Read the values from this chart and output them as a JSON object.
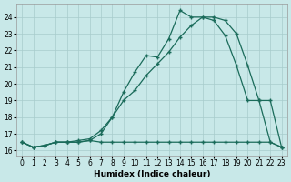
{
  "xlabel": "Humidex (Indice chaleur)",
  "bg_color": "#c8e8e8",
  "grid_color": "#a8cccc",
  "line_color": "#1a6b5a",
  "xlim": [
    -0.5,
    23.5
  ],
  "ylim": [
    15.7,
    24.8
  ],
  "yticks": [
    16,
    17,
    18,
    19,
    20,
    21,
    22,
    23,
    24
  ],
  "xticks": [
    0,
    1,
    2,
    3,
    4,
    5,
    6,
    7,
    8,
    9,
    10,
    11,
    12,
    13,
    14,
    15,
    16,
    17,
    18,
    19,
    20,
    21,
    22,
    23
  ],
  "line1_x": [
    0,
    1,
    2,
    3,
    4,
    5,
    6,
    7,
    8,
    9,
    10,
    11,
    12,
    13,
    14,
    15,
    16,
    17,
    18,
    19,
    20,
    21,
    22,
    23
  ],
  "line1_y": [
    16.5,
    16.2,
    16.3,
    16.5,
    16.5,
    16.5,
    16.6,
    16.5,
    16.5,
    16.5,
    16.5,
    16.5,
    16.5,
    16.5,
    16.5,
    16.5,
    16.5,
    16.5,
    16.5,
    16.5,
    16.5,
    16.5,
    16.5,
    16.2
  ],
  "line2_x": [
    0,
    1,
    2,
    3,
    4,
    5,
    6,
    7,
    8,
    9,
    10,
    11,
    12,
    13,
    14,
    15,
    16,
    17,
    18,
    19,
    20,
    21,
    22,
    23
  ],
  "line2_y": [
    16.5,
    16.2,
    16.3,
    16.5,
    16.5,
    16.6,
    16.7,
    17.2,
    18.0,
    19.0,
    19.6,
    20.5,
    21.2,
    21.9,
    22.8,
    23.5,
    24.0,
    24.0,
    23.8,
    23.0,
    21.1,
    19.0,
    19.0,
    16.2
  ],
  "line3_x": [
    0,
    1,
    2,
    3,
    4,
    5,
    6,
    7,
    8,
    9,
    10,
    11,
    12,
    13,
    14,
    15,
    16,
    17,
    18,
    19,
    20,
    21,
    22,
    23
  ],
  "line3_y": [
    16.5,
    16.2,
    16.3,
    16.5,
    16.5,
    16.5,
    16.6,
    17.0,
    18.0,
    19.5,
    20.7,
    21.7,
    21.6,
    22.7,
    24.4,
    24.0,
    24.0,
    23.8,
    22.9,
    21.1,
    19.0,
    19.0,
    16.5,
    16.2
  ]
}
